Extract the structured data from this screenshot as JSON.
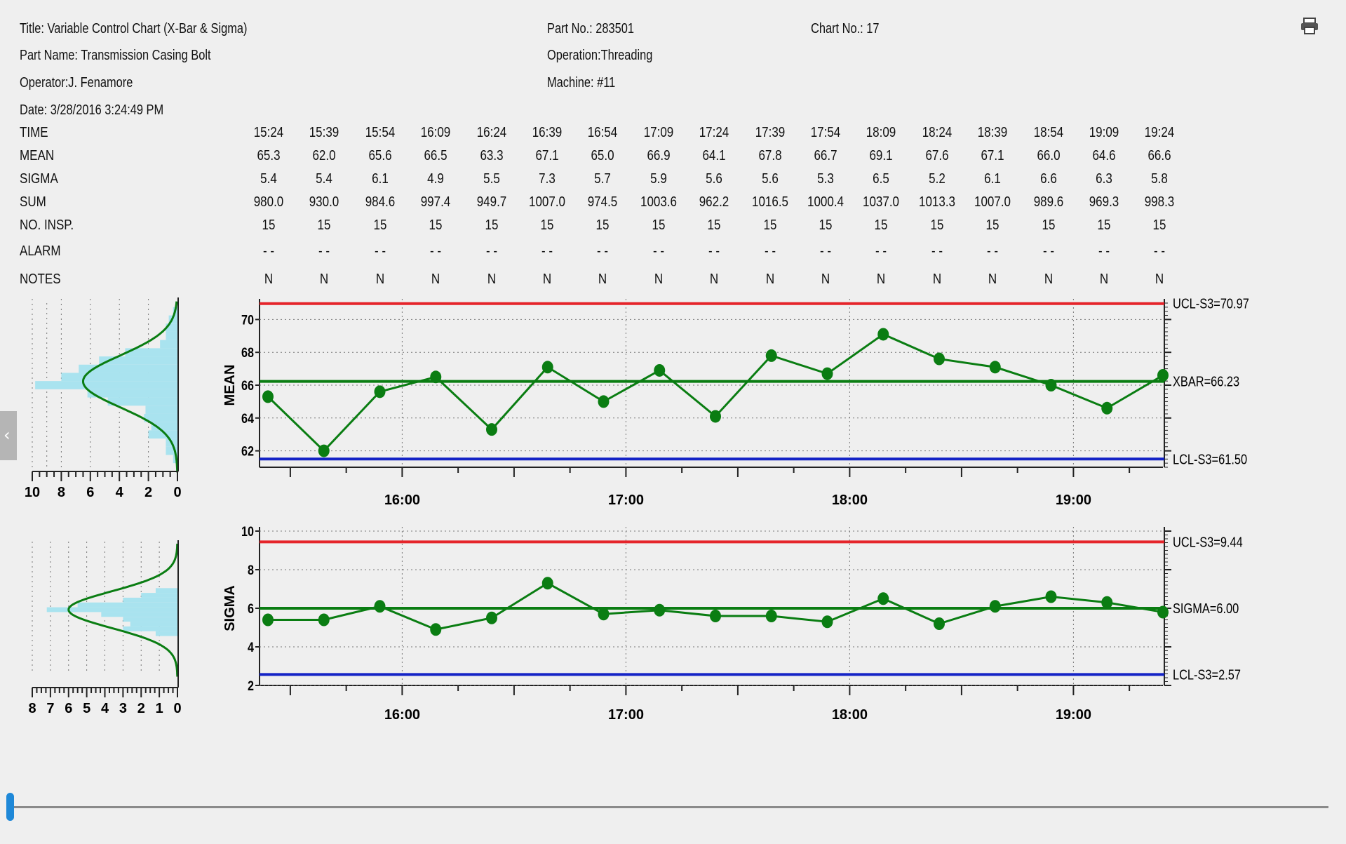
{
  "header": {
    "title": "Title: Variable Control Chart (X-Bar & Sigma)",
    "part_name": "Part Name: Transmission Casing Bolt",
    "operator": "Operator:J. Fenamore",
    "date": "Date: 3/28/2016 3:24:49 PM",
    "part_no": "Part No.: 283501",
    "operation": "Operation:Threading",
    "machine": "Machine: #11",
    "chart_no": "Chart No.: 17"
  },
  "icons": {
    "print": "printer-icon",
    "collapse": "chevron-left-icon"
  },
  "table": {
    "labels": [
      "TIME",
      "MEAN",
      "SIGMA",
      "SUM",
      "NO. INSP.",
      "ALARM",
      "NOTES"
    ],
    "time": [
      "15:24",
      "15:39",
      "15:54",
      "16:09",
      "16:24",
      "16:39",
      "16:54",
      "17:09",
      "17:24",
      "17:39",
      "17:54",
      "18:09",
      "18:24",
      "18:39",
      "18:54",
      "19:09",
      "19:24"
    ],
    "mean": [
      "65.3",
      "62.0",
      "65.6",
      "66.5",
      "63.3",
      "67.1",
      "65.0",
      "66.9",
      "64.1",
      "67.8",
      "66.7",
      "69.1",
      "67.6",
      "67.1",
      "66.0",
      "64.6",
      "66.6"
    ],
    "sigma": [
      "5.4",
      "5.4",
      "6.1",
      "4.9",
      "5.5",
      "7.3",
      "5.7",
      "5.9",
      "5.6",
      "5.6",
      "5.3",
      "6.5",
      "5.2",
      "6.1",
      "6.6",
      "6.3",
      "5.8"
    ],
    "sum": [
      "980.0",
      "930.0",
      "984.6",
      "997.4",
      "949.7",
      "1007.0",
      "974.5",
      "1003.6",
      "962.2",
      "1016.5",
      "1000.4",
      "1037.0",
      "1013.3",
      "1007.0",
      "989.6",
      "969.3",
      "998.3"
    ],
    "insp": [
      "15",
      "15",
      "15",
      "15",
      "15",
      "15",
      "15",
      "15",
      "15",
      "15",
      "15",
      "15",
      "15",
      "15",
      "15",
      "15",
      "15"
    ],
    "alarm": [
      "-  -",
      "-  -",
      "-  -",
      "-  -",
      "-  -",
      "-  -",
      "-  -",
      "-  -",
      "-  -",
      "-  -",
      "-  -",
      "-  -",
      "-  -",
      "-  -",
      "-  -",
      "-  -",
      "-  -"
    ],
    "notes": [
      "N",
      "N",
      "N",
      "N",
      "N",
      "N",
      "N",
      "N",
      "N",
      "N",
      "N",
      "N",
      "N",
      "N",
      "N",
      "N",
      "N"
    ]
  },
  "colors": {
    "line": "#0a7d12",
    "ucl": "#e5242a",
    "lcl": "#1423c6",
    "hist": "#a9e3ef",
    "grid": "#777777"
  },
  "chart_data": [
    {
      "type": "line",
      "ylabel": "MEAN",
      "x": [
        "15:24",
        "15:39",
        "15:54",
        "16:09",
        "16:24",
        "16:39",
        "16:54",
        "17:09",
        "17:24",
        "17:39",
        "17:54",
        "18:09",
        "18:24",
        "18:39",
        "18:54",
        "19:09",
        "19:24"
      ],
      "values": [
        65.3,
        62.0,
        65.6,
        66.5,
        63.3,
        67.1,
        65.0,
        66.9,
        64.1,
        67.8,
        66.7,
        69.1,
        67.6,
        67.1,
        66.0,
        64.6,
        66.6
      ],
      "ylim": [
        61,
        71
      ],
      "yticks": [
        "62",
        "64",
        "66",
        "68",
        "70"
      ],
      "xticks": [
        "16:00",
        "17:00",
        "18:00",
        "19:00"
      ],
      "grid": true,
      "limits": {
        "ucl": 70.97,
        "center": 66.23,
        "lcl": 61.5
      },
      "limit_labels": {
        "ucl": "UCL-S3=70.97",
        "center": "XBAR=66.23",
        "lcl": "LCL-S3=61.50"
      },
      "histogram": {
        "xticks": [
          "10",
          "8",
          "6",
          "4",
          "2",
          "0"
        ],
        "xlim": [
          10,
          0
        ],
        "bins": [
          {
            "y": 70.5,
            "n": 0.3
          },
          {
            "y": 70.0,
            "n": 0.6
          },
          {
            "y": 69.5,
            "n": 0.8
          },
          {
            "y": 69.0,
            "n": 0.8
          },
          {
            "y": 68.5,
            "n": 1.2
          },
          {
            "y": 68.0,
            "n": 3.6
          },
          {
            "y": 67.5,
            "n": 5.4
          },
          {
            "y": 67.0,
            "n": 6.8
          },
          {
            "y": 66.5,
            "n": 8.0
          },
          {
            "y": 66.0,
            "n": 9.8
          },
          {
            "y": 65.5,
            "n": 6.2
          },
          {
            "y": 65.0,
            "n": 4.8
          },
          {
            "y": 64.5,
            "n": 2.2
          },
          {
            "y": 64.0,
            "n": 2.3
          },
          {
            "y": 63.5,
            "n": 1.8
          },
          {
            "y": 63.0,
            "n": 2.0
          },
          {
            "y": 62.5,
            "n": 0.8
          },
          {
            "y": 62.0,
            "n": 0.8
          },
          {
            "y": 61.5,
            "n": 0.3
          }
        ],
        "curve_peak": 6.5
      }
    },
    {
      "type": "line",
      "ylabel": "SIGMA",
      "x": [
        "15:24",
        "15:39",
        "15:54",
        "16:09",
        "16:24",
        "16:39",
        "16:54",
        "17:09",
        "17:24",
        "17:39",
        "17:54",
        "18:09",
        "18:24",
        "18:39",
        "18:54",
        "19:09",
        "19:24"
      ],
      "values": [
        5.4,
        5.4,
        6.1,
        4.9,
        5.5,
        7.3,
        5.7,
        5.9,
        5.6,
        5.6,
        5.3,
        6.5,
        5.2,
        6.1,
        6.6,
        6.3,
        5.8
      ],
      "ylim": [
        2,
        10
      ],
      "yticks": [
        "2",
        "4",
        "6",
        "8",
        "10"
      ],
      "xticks": [
        "16:00",
        "17:00",
        "18:00",
        "19:00"
      ],
      "grid": true,
      "limits": {
        "ucl": 9.44,
        "center": 6.0,
        "lcl": 2.57
      },
      "limit_labels": {
        "ucl": "UCL-S3=9.44",
        "center": "SIGMA=6.00",
        "lcl": "LCL-S3=2.57"
      },
      "histogram": {
        "xticks": [
          "8",
          "7",
          "6",
          "5",
          "4",
          "3",
          "2",
          "1",
          "0"
        ],
        "xlim": [
          8,
          0
        ],
        "bins": [
          {
            "y": 7.2,
            "n": 1.2
          },
          {
            "y": 6.9,
            "n": 2.0
          },
          {
            "y": 6.6,
            "n": 3.0
          },
          {
            "y": 6.3,
            "n": 5.5
          },
          {
            "y": 6.0,
            "n": 7.2
          },
          {
            "y": 5.7,
            "n": 4.2
          },
          {
            "y": 5.4,
            "n": 3.0
          },
          {
            "y": 5.1,
            "n": 2.6
          },
          {
            "y": 4.8,
            "n": 3.0
          },
          {
            "y": 4.5,
            "n": 1.2
          }
        ],
        "curve_peak": 6.0
      }
    }
  ]
}
